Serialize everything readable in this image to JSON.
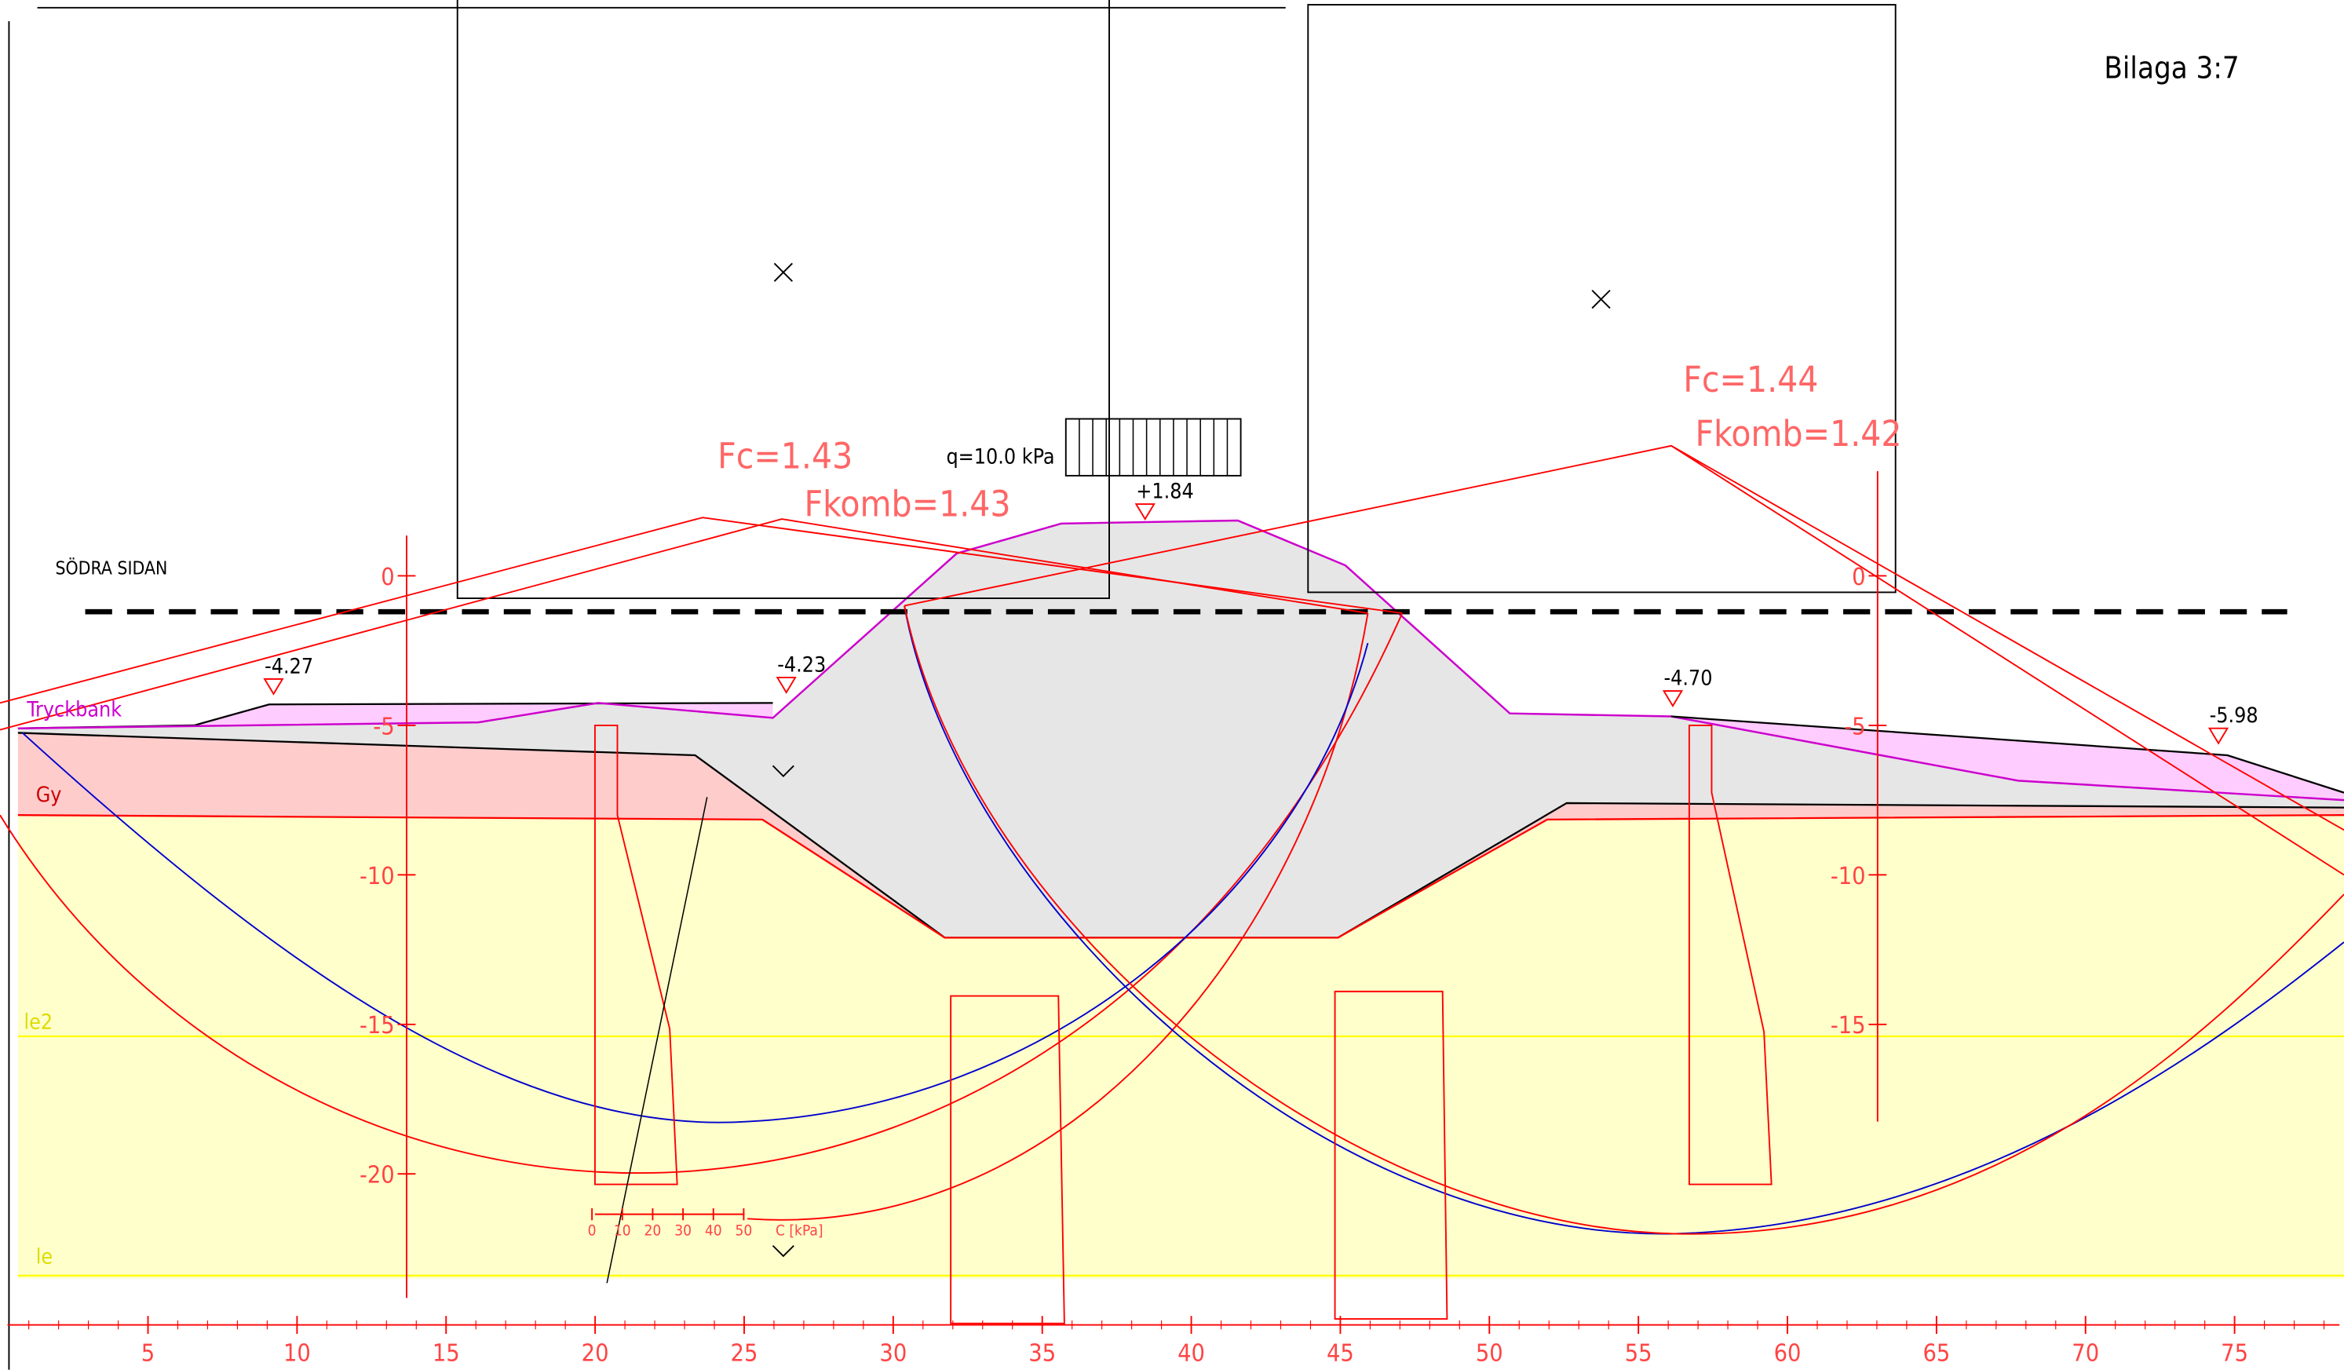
{
  "sheet_label": "Bilaga 3:7",
  "section_label": "SÖDRA SIDAN",
  "load_label": "q=10.0 kPa",
  "results": [
    {
      "fc": "Fc=1.43",
      "fkomb": "Fkomb=1.43"
    },
    {
      "fc": "Fc=1.44",
      "fkomb": "Fkomb=1.42"
    }
  ],
  "levels": [
    "-4.27",
    "-4.23",
    "+1.84",
    "-4.70",
    "-5.98"
  ],
  "layers": [
    "Tryckbank",
    "Gy",
    "le2",
    "le"
  ],
  "x_axis": [
    "5",
    "10",
    "15",
    "20",
    "25",
    "30",
    "35",
    "40",
    "45",
    "50",
    "55",
    "60",
    "65",
    "70",
    "75"
  ],
  "y_axis_left": [
    "0",
    "-5",
    "-10",
    "-15",
    "-20"
  ],
  "y_axis_right": [
    "0",
    "-5",
    "-10",
    "-15"
  ],
  "strength_scale": [
    "0",
    "10",
    "20",
    "30",
    "40",
    "50",
    "C [kPa]"
  ]
}
